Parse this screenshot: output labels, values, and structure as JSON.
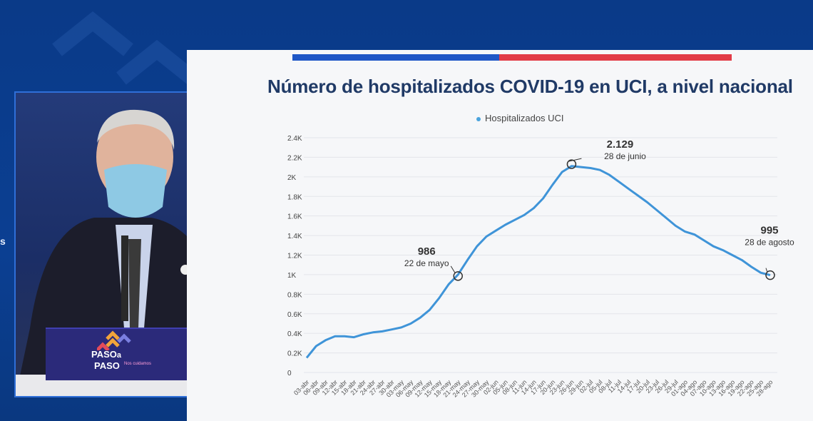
{
  "page": {
    "left_text": "s",
    "podium": {
      "line1": "PASO",
      "line1_a": "a",
      "line2": "PASO",
      "tagline": "Nos cuidamos"
    }
  },
  "chart_data": {
    "type": "line",
    "title": "Número de hospitalizados COVID-19 en UCI, a nivel nacional",
    "xlabel": "",
    "ylabel": "",
    "ylim": [
      0,
      2400
    ],
    "yticks": [
      0,
      200,
      400,
      600,
      800,
      1000,
      1200,
      1400,
      1600,
      1800,
      2000,
      2200,
      2400
    ],
    "ytick_labels": [
      "0",
      "0.2K",
      "0.4K",
      "0.6K",
      "0.8K",
      "1K",
      "1.2K",
      "1.4K",
      "1.6K",
      "1.8K",
      "2K",
      "2.2K",
      "2.4K"
    ],
    "grid": true,
    "legend": "top-center",
    "line_color": "#3f94d8",
    "series": [
      {
        "name": "Hospitalizados UCI",
        "x": [
          "03-abr",
          "06-abr",
          "09-abr",
          "12-abr",
          "15-abr",
          "18-abr",
          "21-abr",
          "24-abr",
          "27-abr",
          "30-abr",
          "03-may",
          "06-may",
          "09-may",
          "12-may",
          "15-may",
          "18-may",
          "21-may",
          "24-may",
          "27-may",
          "30-may",
          "02-jun",
          "05-jun",
          "08-jun",
          "11-jun",
          "14-jun",
          "17-jun",
          "20-jun",
          "23-jun",
          "26-jun",
          "29-jun",
          "02-jul",
          "05-jul",
          "08-jul",
          "11-jul",
          "14-jul",
          "17-jul",
          "20-jul",
          "23-jul",
          "26-jul",
          "29-jul",
          "01-ago",
          "04-ago",
          "07-ago",
          "10-ago",
          "13-ago",
          "16-ago",
          "19-ago",
          "22-ago",
          "25-ago",
          "28-ago"
        ],
        "values": [
          150,
          270,
          330,
          370,
          370,
          360,
          390,
          410,
          420,
          440,
          460,
          500,
          560,
          640,
          760,
          900,
          1000,
          1150,
          1290,
          1390,
          1450,
          1510,
          1560,
          1610,
          1680,
          1780,
          1920,
          2050,
          2110,
          2100,
          2090,
          2070,
          2020,
          1950,
          1880,
          1810,
          1740,
          1660,
          1580,
          1500,
          1440,
          1410,
          1350,
          1290,
          1250,
          1200,
          1150,
          1080,
          1020,
          995
        ]
      }
    ],
    "x_tick_labels": [
      "03-abr",
      "06-abr",
      "09-abr",
      "12-abr",
      "15-abr",
      "18-abr",
      "21-abr",
      "24-abr",
      "27-abr",
      "30-abr",
      "03-may",
      "06-may",
      "09-may",
      "12-may",
      "15-may",
      "18-may",
      "21-may",
      "24-may",
      "27-may",
      "30-may",
      "02-jun",
      "05-jun",
      "08-jun",
      "11-jun",
      "14-jun",
      "17-jun",
      "20-jun",
      "23-jun",
      "26-jun",
      "29-jun",
      "02-jul",
      "05-jul",
      "08-jul",
      "11-jul",
      "14-jul",
      "17-jul",
      "20-jul",
      "23-jul",
      "26-jul",
      "29-jul",
      "01-ago",
      "04-ago",
      "07-ago",
      "10-ago",
      "13-ago",
      "16-ago",
      "19-ago",
      "22-ago",
      "25-ago",
      "28-ago"
    ],
    "annotations": [
      {
        "value_label": "986",
        "date_label": "22 de mayo",
        "x": "21-may",
        "y": 986
      },
      {
        "value_label": "2.129",
        "date_label": "28 de junio",
        "x": "26-jun",
        "y": 2129
      },
      {
        "value_label": "995",
        "date_label": "28 de agosto",
        "x": "28-ago",
        "y": 995
      }
    ]
  }
}
